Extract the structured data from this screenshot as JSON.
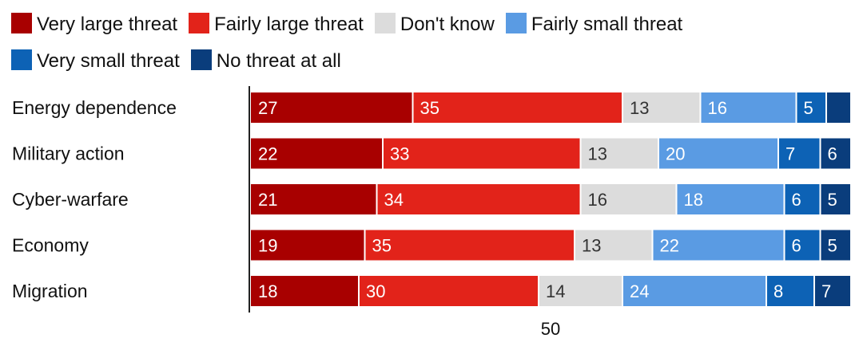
{
  "chart_data": {
    "type": "bar",
    "orientation": "horizontal",
    "stacked": true,
    "categories": [
      "Energy dependence",
      "Military action",
      "Cyber-warfare",
      "Economy",
      "Migration"
    ],
    "series": [
      {
        "name": "Very large threat",
        "color": "#a80000",
        "values": [
          27,
          22,
          21,
          19,
          18
        ]
      },
      {
        "name": "Fairly large threat",
        "color": "#e2231a",
        "values": [
          35,
          33,
          34,
          35,
          30
        ]
      },
      {
        "name": "Don't know",
        "color": "#dcdcdc",
        "values": [
          13,
          13,
          16,
          13,
          14
        ]
      },
      {
        "name": "Fairly small threat",
        "color": "#5a9be3",
        "values": [
          16,
          20,
          18,
          22,
          24
        ]
      },
      {
        "name": "Very small threat",
        "color": "#0d62b5",
        "values": [
          5,
          7,
          6,
          6,
          8
        ]
      },
      {
        "name": "No threat at all",
        "color": "#0a3d7c",
        "values": [
          4,
          6,
          5,
          5,
          7
        ]
      }
    ],
    "value_labels": [
      [
        "27",
        "35",
        "13",
        "16",
        "5",
        ""
      ],
      [
        "22",
        "33",
        "13",
        "20",
        "7",
        "6"
      ],
      [
        "21",
        "34",
        "16",
        "18",
        "6",
        "5"
      ],
      [
        "19",
        "35",
        "13",
        "22",
        "6",
        "5"
      ],
      [
        "18",
        "30",
        "14",
        "24",
        "8",
        "7"
      ]
    ],
    "xlim": [
      0,
      100
    ],
    "xticks": [
      {
        "value": 50,
        "label": "50"
      }
    ],
    "legend_position": "top",
    "grid": false
  }
}
